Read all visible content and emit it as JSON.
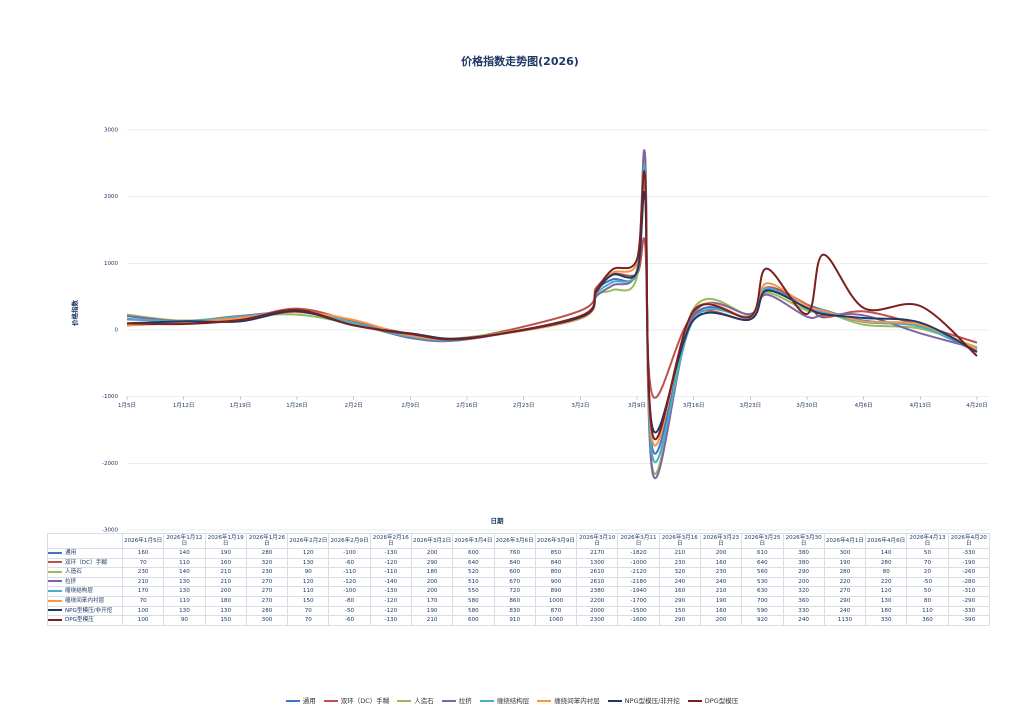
{
  "chart_data": {
    "type": "line",
    "title": "价格指数走势图(2026)",
    "y_label": "价格指数",
    "x_label": "日期",
    "x": [
      "2026年1月5日",
      "2026年1月12日",
      "2026年1月19日",
      "2026年1月26日",
      "2026年2月2日",
      "2026年2月9日",
      "2026年2月16日",
      "2026年3月2日",
      "2026年3月4日",
      "2026年3月6日",
      "2026年3月9日",
      "2026年3月10日",
      "2026年3月11日",
      "2026年3月16日",
      "2026年3月23日",
      "2026年3月25日",
      "2026年3月30日",
      "2026年4月1日",
      "2026年4月6日",
      "2026年4月13日",
      "2026年4月20日"
    ],
    "xticks": [
      "1月5日",
      "1月12日",
      "1月19日",
      "1月26日",
      "2月2日",
      "2月9日",
      "2月16日",
      "2月23日",
      "3月2日",
      "3月9日",
      "3月16日",
      "3月23日",
      "3月30日",
      "4月6日",
      "4月13日",
      "4月20日"
    ],
    "ylim": [
      -3000,
      3000
    ],
    "yticks": [
      -3000,
      -2000,
      -1000,
      0,
      1000,
      2000,
      3000
    ],
    "grid": true,
    "smooth": true,
    "legend": "bottom",
    "series": [
      {
        "name": "通用",
        "color": "#4472c4",
        "values": [
          160,
          140,
          190,
          280,
          120,
          -100,
          -130,
          200,
          600,
          760,
          850,
          2170,
          -1820,
          210,
          200,
          610,
          380,
          300,
          140,
          50,
          -330
        ]
      },
      {
        "name": "双环（DC）手糊",
        "color": "#c0504d",
        "values": [
          70,
          110,
          160,
          320,
          130,
          -60,
          -120,
          290,
          640,
          840,
          840,
          1300,
          -1000,
          230,
          160,
          640,
          380,
          190,
          280,
          70,
          -190
        ]
      },
      {
        "name": "人造石",
        "color": "#9bbb59",
        "values": [
          230,
          140,
          210,
          230,
          90,
          -110,
          -110,
          180,
          520,
          600,
          800,
          2610,
          -2120,
          320,
          230,
          560,
          290,
          280,
          80,
          20,
          -260
        ]
      },
      {
        "name": "拉挤",
        "color": "#8064a2",
        "values": [
          210,
          130,
          210,
          270,
          120,
          -120,
          -140,
          200,
          510,
          670,
          900,
          2610,
          -2180,
          240,
          240,
          530,
          200,
          220,
          220,
          -50,
          -280
        ]
      },
      {
        "name": "缠绕结构层",
        "color": "#4bacc6",
        "values": [
          170,
          130,
          200,
          270,
          110,
          -100,
          -130,
          200,
          550,
          720,
          890,
          2380,
          -1940,
          160,
          210,
          630,
          320,
          270,
          120,
          50,
          -310
        ]
      },
      {
        "name": "缠绕间苯内衬层",
        "color": "#f79646",
        "values": [
          70,
          110,
          180,
          270,
          150,
          -80,
          -120,
          170,
          580,
          860,
          1000,
          2200,
          -1700,
          290,
          190,
          700,
          360,
          290,
          130,
          80,
          -290
        ]
      },
      {
        "name": "NPG型模压/非开挖",
        "color": "#1f3864",
        "values": [
          100,
          130,
          130,
          280,
          70,
          -50,
          -120,
          190,
          580,
          830,
          870,
          2000,
          -1500,
          150,
          160,
          590,
          330,
          240,
          180,
          110,
          -330
        ]
      },
      {
        "name": "DPG型模压",
        "color": "#7b2020",
        "values": [
          100,
          90,
          150,
          300,
          70,
          -60,
          -130,
          210,
          600,
          910,
          1060,
          2300,
          -1600,
          290,
          200,
          920,
          240,
          1130,
          330,
          360,
          -390
        ]
      }
    ]
  }
}
